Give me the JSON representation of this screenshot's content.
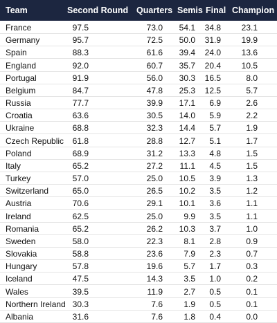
{
  "table": {
    "header": [
      "Team",
      "Second Round",
      "Quarters",
      "Semis",
      "Final",
      "Champion"
    ],
    "rows": [
      [
        "France",
        "97.5",
        "73.0",
        "54.1",
        "34.8",
        "23.1"
      ],
      [
        "Germany",
        "95.7",
        "72.5",
        "50.0",
        "31.9",
        "19.9"
      ],
      [
        "Spain",
        "88.3",
        "61.6",
        "39.4",
        "24.0",
        "13.6"
      ],
      [
        "England",
        "92.0",
        "60.7",
        "35.7",
        "20.4",
        "10.5"
      ],
      [
        "Portugal",
        "91.9",
        "56.0",
        "30.3",
        "16.5",
        "8.0"
      ],
      [
        "Belgium",
        "84.7",
        "47.8",
        "25.3",
        "12.5",
        "5.7"
      ],
      [
        "Russia",
        "77.7",
        "39.9",
        "17.1",
        "6.9",
        "2.6"
      ],
      [
        "Croatia",
        "63.6",
        "30.5",
        "14.0",
        "5.9",
        "2.2"
      ],
      [
        "Ukraine",
        "68.8",
        "32.3",
        "14.4",
        "5.7",
        "1.9"
      ],
      [
        "Czech Republic",
        "61.8",
        "28.8",
        "12.7",
        "5.1",
        "1.7"
      ],
      [
        "Poland",
        "68.9",
        "31.2",
        "13.3",
        "4.8",
        "1.5"
      ],
      [
        "Italy",
        "65.2",
        "27.2",
        "11.1",
        "4.5",
        "1.5"
      ],
      [
        "Turkey",
        "57.0",
        "25.0",
        "10.5",
        "3.9",
        "1.3"
      ],
      [
        "Switzerland",
        "65.0",
        "26.5",
        "10.2",
        "3.5",
        "1.2"
      ],
      [
        "Austria",
        "70.6",
        "29.1",
        "10.1",
        "3.6",
        "1.1"
      ],
      [
        "Ireland",
        "62.5",
        "25.0",
        "9.9",
        "3.5",
        "1.1"
      ],
      [
        "Romania",
        "65.2",
        "26.2",
        "10.3",
        "3.7",
        "1.0"
      ],
      [
        "Sweden",
        "58.0",
        "22.3",
        "8.1",
        "2.8",
        "0.9"
      ],
      [
        "Slovakia",
        "58.8",
        "23.6",
        "7.9",
        "2.3",
        "0.7"
      ],
      [
        "Hungary",
        "57.8",
        "19.6",
        "5.7",
        "1.7",
        "0.3"
      ],
      [
        "Iceland",
        "47.5",
        "14.3",
        "3.5",
        "1.0",
        "0.2"
      ],
      [
        "Wales",
        "39.5",
        "11.9",
        "2.7",
        "0.5",
        "0.1"
      ],
      [
        "Northern Ireland",
        "30.3",
        "7.6",
        "1.9",
        "0.5",
        "0.1"
      ],
      [
        "Albania",
        "31.6",
        "7.6",
        "1.8",
        "0.4",
        "0.0"
      ]
    ]
  }
}
